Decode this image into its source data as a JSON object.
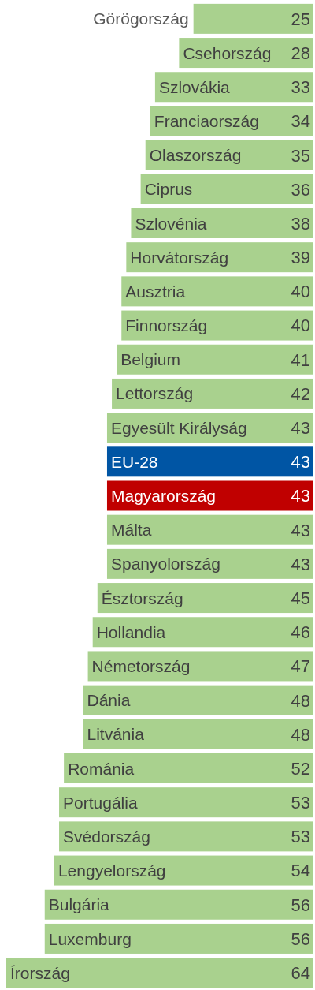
{
  "chart_data": {
    "type": "bar",
    "orientation": "horizontal",
    "data_labels": true,
    "categories": [
      "Görögország",
      "Csehország",
      "Szlovákia",
      "Franciaország",
      "Olaszország",
      "Ciprus",
      "Szlovénia",
      "Horvátország",
      "Ausztria",
      "Finnország",
      "Belgium",
      "Lettország",
      "Egyesült Királyság",
      "EU-28",
      "Magyarország",
      "Málta",
      "Spanyolország",
      "Észtország",
      "Hollandia",
      "Németország",
      "Dánia",
      "Litvánia",
      "Románia",
      "Portugália",
      "Svédország",
      "Lengyelország",
      "Bulgária",
      "Luxemburg",
      "Írország"
    ],
    "values": [
      25,
      28,
      33,
      34,
      35,
      36,
      38,
      39,
      40,
      40,
      41,
      42,
      43,
      43,
      43,
      43,
      43,
      45,
      46,
      47,
      48,
      48,
      52,
      53,
      53,
      54,
      56,
      56,
      64
    ],
    "colors": [
      "#a9d18e",
      "#a9d18e",
      "#a9d18e",
      "#a9d18e",
      "#a9d18e",
      "#a9d18e",
      "#a9d18e",
      "#a9d18e",
      "#a9d18e",
      "#a9d18e",
      "#a9d18e",
      "#a9d18e",
      "#a9d18e",
      "#0055a4",
      "#c00000",
      "#a9d18e",
      "#a9d18e",
      "#a9d18e",
      "#a9d18e",
      "#a9d18e",
      "#a9d18e",
      "#a9d18e",
      "#a9d18e",
      "#a9d18e",
      "#a9d18e",
      "#a9d18e",
      "#a9d18e",
      "#a9d18e",
      "#a9d18e"
    ]
  }
}
